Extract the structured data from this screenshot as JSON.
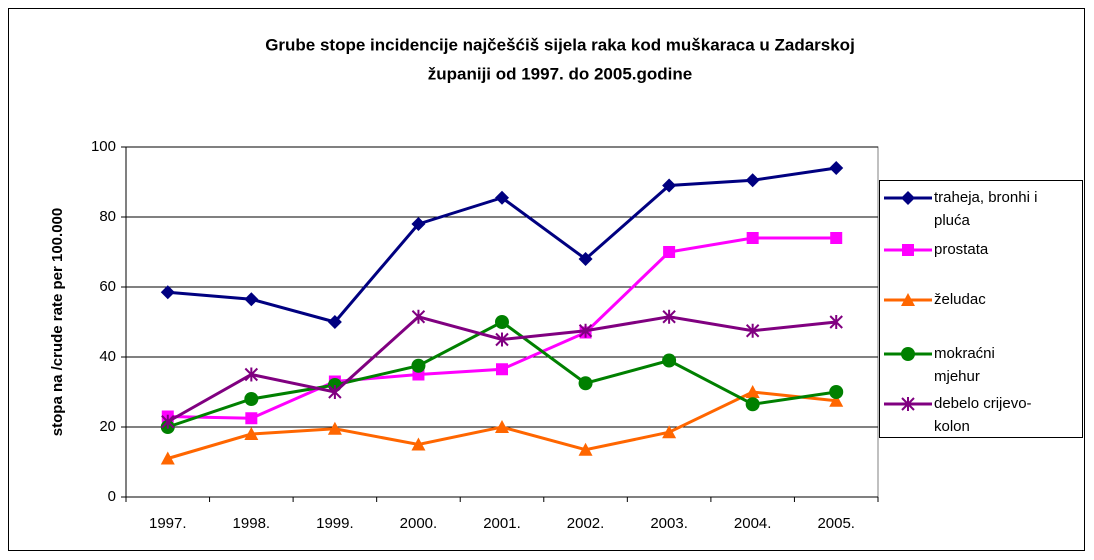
{
  "chart_data": {
    "type": "line",
    "title": [
      "Grube stope incidencije najčešćiš sijela raka kod muškaraca u Zadarskoj",
      "županiji od 1997. do 2005.godine"
    ],
    "y_label": "stopa na /crude rate per 100.000",
    "categories": [
      "1997.",
      "1998.",
      "1999.",
      "2000.",
      "2001.",
      "2002.",
      "2003.",
      "2004.",
      "2005."
    ],
    "ylim": [
      0,
      100
    ],
    "yticks": [
      0,
      20,
      40,
      60,
      80,
      100
    ],
    "grid": true,
    "legend": "right",
    "series": [
      {
        "name": "traheja, bronhi i pluća",
        "color": "#000080",
        "marker": "diamond",
        "values": [
          58.5,
          56.5,
          50,
          78,
          85.5,
          68,
          89,
          90.5,
          94
        ]
      },
      {
        "name": "prostata",
        "color": "#ff00ff",
        "marker": "square",
        "values": [
          23,
          22.5,
          33,
          35,
          36.5,
          47,
          70,
          74,
          74
        ]
      },
      {
        "name": "želudac",
        "color": "#ff6600",
        "marker": "triangle",
        "values": [
          11,
          18,
          19.5,
          15,
          20,
          13.5,
          18.5,
          30,
          27.5
        ]
      },
      {
        "name": "mokraćni mjehur",
        "color": "#008000",
        "marker": "circle",
        "values": [
          20,
          28,
          32,
          37.5,
          50,
          32.5,
          39,
          26.5,
          30
        ]
      },
      {
        "name": "debelo crijevo-kolon",
        "color": "#800080",
        "marker": "asterisk",
        "values": [
          21.5,
          35,
          30,
          51.5,
          45,
          47.5,
          51.5,
          47.5,
          50
        ]
      }
    ]
  }
}
